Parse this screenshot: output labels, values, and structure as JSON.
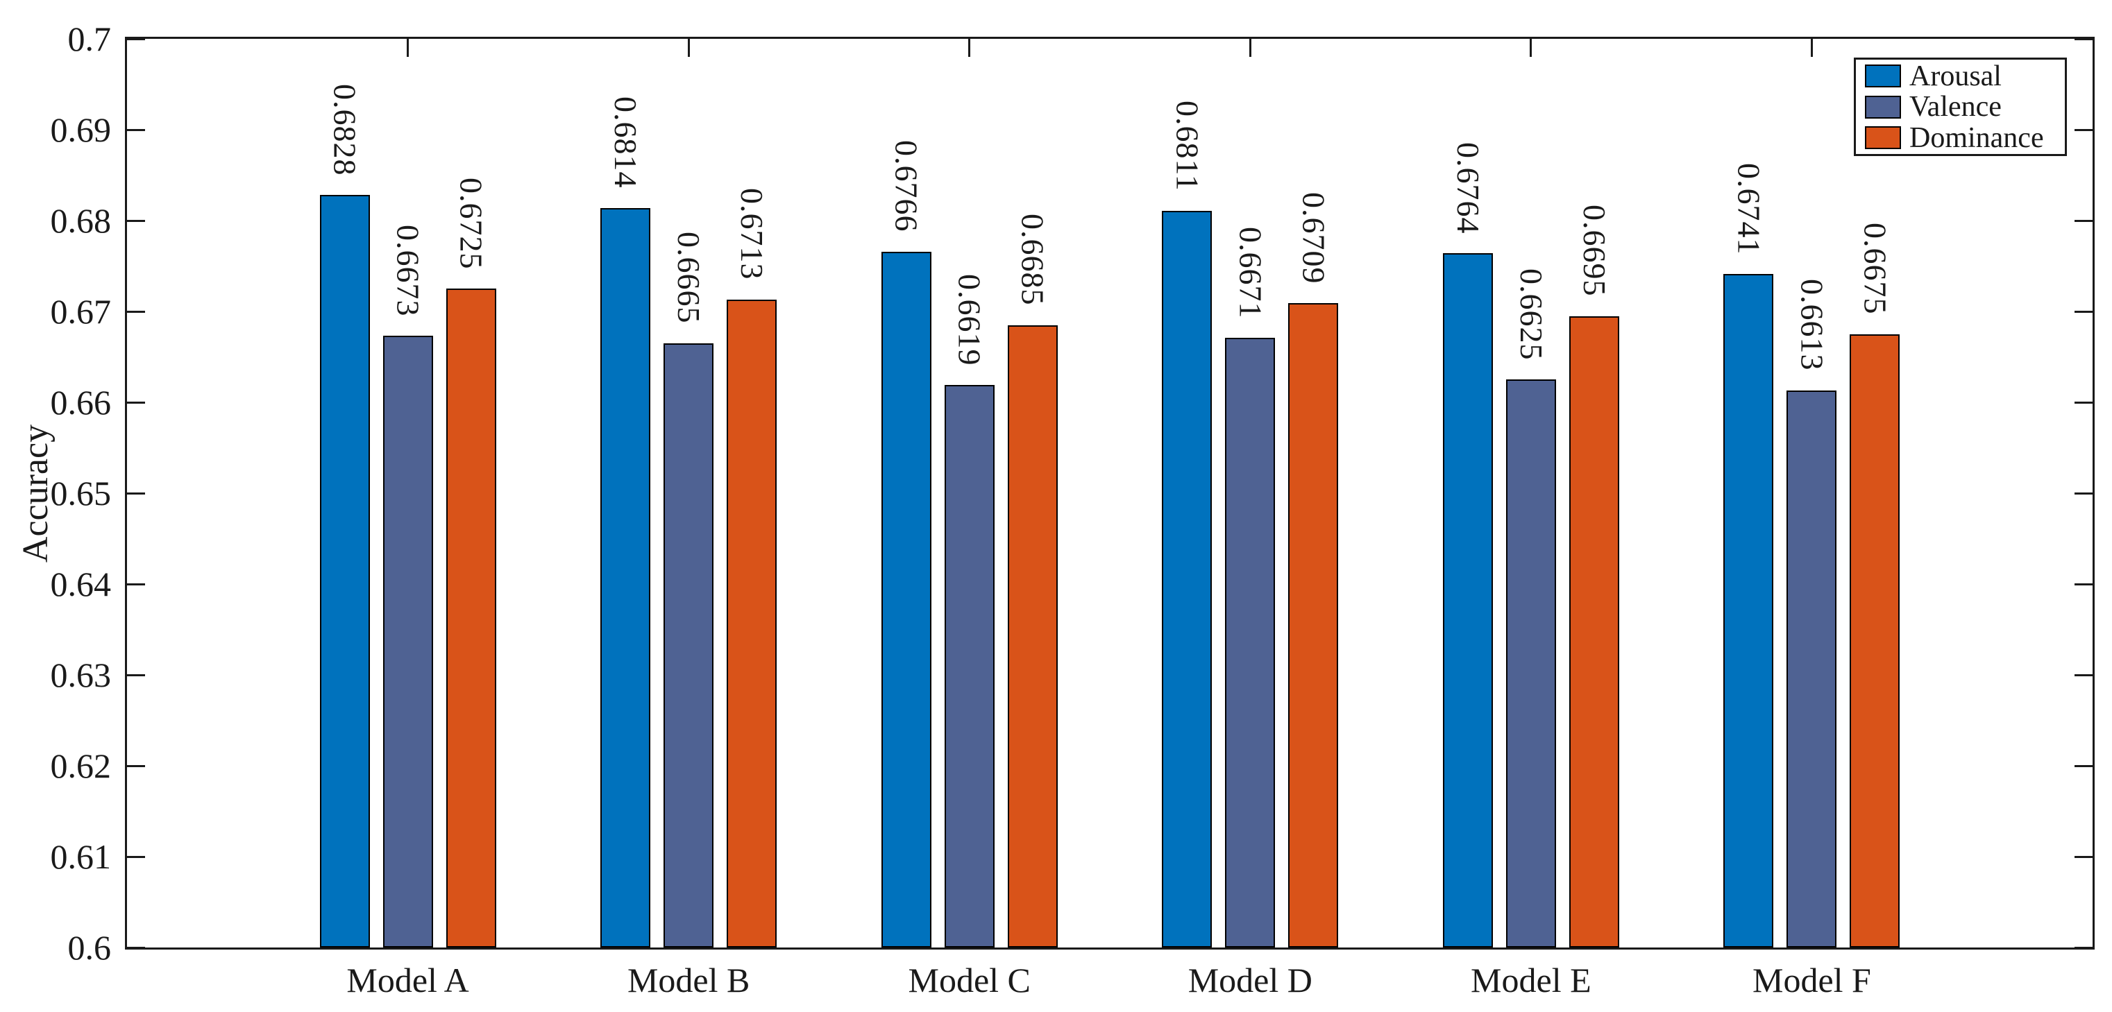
{
  "chart_data": {
    "type": "bar",
    "title": "",
    "xlabel": "",
    "ylabel": "Accuracy",
    "ylim": [
      0.6,
      0.7
    ],
    "ytick_step": 0.01,
    "ytick_labels": [
      "0.6",
      "0.61",
      "0.62",
      "0.63",
      "0.64",
      "0.65",
      "0.66",
      "0.67",
      "0.68",
      "0.69",
      "0.7"
    ],
    "categories": [
      "Model A",
      "Model B",
      "Model C",
      "Model D",
      "Model E",
      "Model F"
    ],
    "series": [
      {
        "name": "Arousal",
        "color": "#0072BD",
        "values": [
          0.6828,
          0.6814,
          0.6766,
          0.6811,
          0.6764,
          0.6741
        ]
      },
      {
        "name": "Valence",
        "color": "#4F6293",
        "values": [
          0.6673,
          0.6665,
          0.6619,
          0.6671,
          0.6625,
          0.6613
        ]
      },
      {
        "name": "Dominance",
        "color": "#D95319",
        "values": [
          0.6725,
          0.6713,
          0.6685,
          0.6709,
          0.6695,
          0.6675
        ]
      }
    ],
    "legend_position": "top-right",
    "grid": false,
    "bar_edge_color": "#000000",
    "axis_color": "#1a1a1a",
    "plot_background": "#ffffff",
    "value_labels_shown": true,
    "value_label_decimals": 4,
    "value_label_rotation_deg": 90
  }
}
